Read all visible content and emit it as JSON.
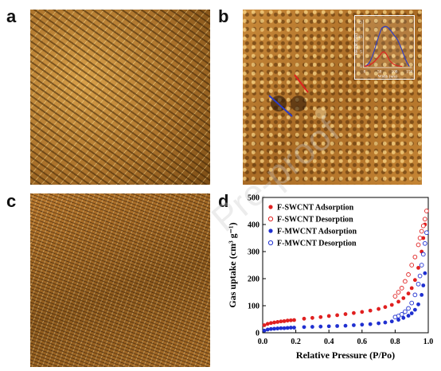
{
  "panels": {
    "a": {
      "letter": "a"
    },
    "b": {
      "letter": "b"
    },
    "c": {
      "letter": "c"
    },
    "d": {
      "letter": "d"
    }
  },
  "inset_b": {
    "xlabel": "Width (nm)",
    "ylabel": "Height (nm)",
    "xticks": [
      "0",
      "50",
      "100",
      "150"
    ],
    "yticks": [
      "0",
      "5",
      "10",
      "15"
    ],
    "colors": {
      "blue": "#2a3cc8",
      "red": "#e02020"
    }
  },
  "watermark": "Pre-proof",
  "chart_data": {
    "type": "scatter",
    "xlabel": "Relative Pressure (P/Po)",
    "ylabel": "Gas uptake (cm³ g⁻¹)",
    "xlim": [
      0.0,
      1.0
    ],
    "ylim": [
      0,
      500
    ],
    "xticks": [
      "0.0",
      "0.2",
      "0.4",
      "0.6",
      "0.8",
      "1.0"
    ],
    "yticks": [
      "0",
      "100",
      "200",
      "300",
      "400",
      "500"
    ],
    "legend_position": "top-left",
    "series": [
      {
        "name": "F-SWCNT Adsorption",
        "marker": "filled",
        "color": "#e02020",
        "x": [
          0.01,
          0.03,
          0.05,
          0.07,
          0.09,
          0.11,
          0.13,
          0.15,
          0.17,
          0.19,
          0.25,
          0.3,
          0.35,
          0.4,
          0.45,
          0.5,
          0.55,
          0.6,
          0.65,
          0.7,
          0.74,
          0.78,
          0.82,
          0.85,
          0.88,
          0.9,
          0.92,
          0.94,
          0.96,
          0.97,
          0.98,
          0.99
        ],
        "y": [
          28,
          33,
          36,
          38,
          40,
          42,
          43,
          45,
          46,
          47,
          52,
          55,
          58,
          62,
          65,
          69,
          73,
          77,
          82,
          88,
          95,
          103,
          115,
          128,
          145,
          165,
          195,
          240,
          300,
          350,
          400,
          450
        ]
      },
      {
        "name": "F-SWCNT Desorption",
        "marker": "open",
        "color": "#e02020",
        "x": [
          0.99,
          0.98,
          0.97,
          0.96,
          0.95,
          0.94,
          0.92,
          0.9,
          0.88,
          0.86,
          0.84,
          0.82,
          0.8
        ],
        "y": [
          450,
          420,
          395,
          375,
          350,
          325,
          280,
          250,
          215,
          190,
          165,
          150,
          135
        ]
      },
      {
        "name": "F-MWCNT Adsorption",
        "marker": "filled",
        "color": "#2030d0",
        "x": [
          0.01,
          0.03,
          0.05,
          0.07,
          0.09,
          0.11,
          0.13,
          0.15,
          0.17,
          0.19,
          0.25,
          0.3,
          0.35,
          0.4,
          0.45,
          0.5,
          0.55,
          0.6,
          0.65,
          0.7,
          0.74,
          0.78,
          0.82,
          0.85,
          0.88,
          0.9,
          0.92,
          0.94,
          0.96,
          0.97,
          0.98,
          0.99
        ],
        "y": [
          8,
          12,
          14,
          15,
          16,
          17,
          17,
          18,
          19,
          19,
          21,
          22,
          23,
          24,
          25,
          26,
          28,
          30,
          32,
          35,
          38,
          42,
          48,
          55,
          63,
          72,
          85,
          105,
          140,
          175,
          220,
          370
        ]
      },
      {
        "name": "F-MWCNT Desorption",
        "marker": "open",
        "color": "#2030d0",
        "x": [
          0.99,
          0.98,
          0.97,
          0.96,
          0.95,
          0.94,
          0.92,
          0.9,
          0.88,
          0.86,
          0.84,
          0.82,
          0.8
        ],
        "y": [
          370,
          330,
          290,
          250,
          210,
          180,
          140,
          110,
          90,
          78,
          68,
          62,
          58
        ]
      }
    ]
  }
}
